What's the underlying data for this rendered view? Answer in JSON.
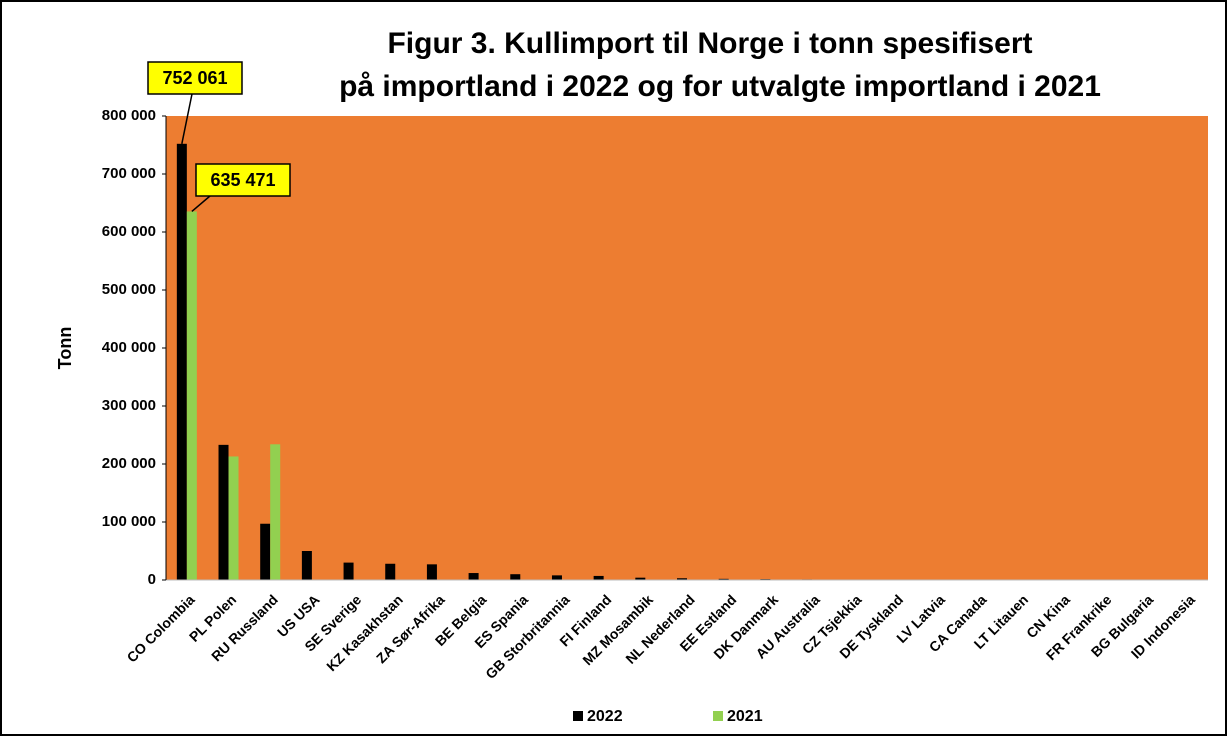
{
  "chart_data": {
    "type": "bar",
    "title": "Figur 3. Kullimport til Norge i tonn spesifisert",
    "subtitle": "på importland i 2022 og for utvalgte importland i 2021",
    "y_label": "Tonn",
    "categories": [
      "CO Colombia",
      "PL Polen",
      "RU Russland",
      "US USA",
      "SE Sverige",
      "KZ Kasakhstan",
      "ZA Sør-Afrika",
      "BE Belgia",
      "ES Spania",
      "GB Storbritannia",
      "FI Finland",
      "MZ Mosambik",
      "NL Nederland",
      "EE Estland",
      "DK Danmark",
      "AU Australia",
      "CZ Tsjekkia",
      "DE Tyskland",
      "LV Latvia",
      "CA Canada",
      "LT Litauen",
      "CN Kina",
      "FR Frankrike",
      "BG Bulgaria",
      "ID Indonesia"
    ],
    "series": [
      {
        "name": "2022",
        "color": "#000000",
        "values": [
          752061,
          233000,
          97000,
          50000,
          30000,
          28000,
          27000,
          12000,
          10000,
          8000,
          7000,
          4000,
          3000,
          2000,
          1500,
          1000,
          500,
          300,
          200,
          100,
          100,
          50,
          50,
          20,
          10
        ],
        "value_labels": [
          "752 061",
          null,
          null,
          null,
          null,
          null,
          null,
          null,
          null,
          null,
          null,
          null,
          null,
          null,
          null,
          null,
          null,
          null,
          null,
          null,
          null,
          null,
          null,
          null,
          null
        ]
      },
      {
        "name": "2021",
        "color": "#92d050",
        "values": [
          635471,
          213000,
          234000,
          0,
          0,
          0,
          0,
          0,
          0,
          0,
          0,
          0,
          0,
          0,
          0,
          0,
          0,
          0,
          0,
          0,
          0,
          0,
          0,
          0,
          0
        ],
        "value_labels": [
          "635 471",
          null,
          null,
          null,
          null,
          null,
          null,
          null,
          null,
          null,
          null,
          null,
          null,
          null,
          null,
          null,
          null,
          null,
          null,
          null,
          null,
          null,
          null,
          null,
          null
        ]
      }
    ],
    "ylim": [
      0,
      800000
    ],
    "yticks": [
      0,
      {
        "value": 100000,
        "label": "100 000"
      },
      {
        "value": 200000,
        "label": "200 000"
      },
      {
        "value": 300000,
        "label": "300 000"
      },
      {
        "value": 400000,
        "label": "400 000"
      },
      {
        "value": 500000,
        "label": "500 000"
      },
      {
        "value": 600000,
        "label": "600 000"
      },
      {
        "value": 700000,
        "label": "700 000"
      },
      {
        "value": 800000,
        "label": "800 000"
      }
    ],
    "plot_color": "#ed7d31",
    "legend": "bottom"
  }
}
